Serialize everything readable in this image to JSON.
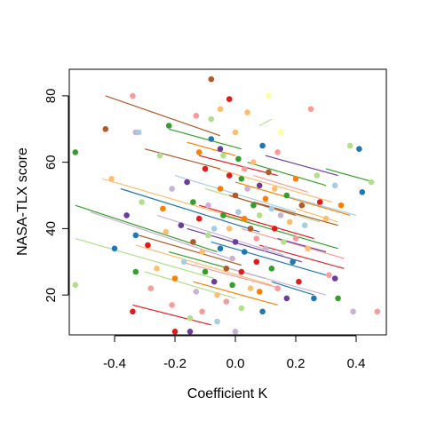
{
  "chart_data": {
    "type": "scatter",
    "title": "",
    "xlabel": "Coefficient K",
    "ylabel": "NASA-TLX score",
    "xlim": [
      -0.55,
      0.5
    ],
    "ylim": [
      8,
      88
    ],
    "xticks": [
      -0.4,
      -0.2,
      0.0,
      0.2,
      0.4
    ],
    "xtick_labels": [
      "-0.4",
      "-0.2",
      "0.0",
      "0.2",
      "0.4"
    ],
    "yticks": [
      20,
      40,
      60,
      80
    ],
    "ytick_labels": [
      "20",
      "40",
      "60",
      "80"
    ],
    "grid": false,
    "legend": "none",
    "palette": [
      "#a6cee3",
      "#1f78b4",
      "#b2df8a",
      "#33a02c",
      "#fb9a99",
      "#e31a1c",
      "#fdbf6f",
      "#ff7f00",
      "#cab2d6",
      "#6a3d9a",
      "#ffff99",
      "#b15928"
    ],
    "lines": [
      {
        "x1": -0.43,
        "y1": 80,
        "x2": -0.05,
        "y2": 68,
        "color": "#b15928"
      },
      {
        "x1": -0.53,
        "y1": 47,
        "x2": -0.06,
        "y2": 33,
        "color": "#33a02c"
      },
      {
        "x1": -0.53,
        "y1": 37,
        "x2": -0.07,
        "y2": 25,
        "color": "#b2df8a"
      },
      {
        "x1": -0.48,
        "y1": 45,
        "x2": -0.02,
        "y2": 31,
        "color": "#cab2d6"
      },
      {
        "x1": -0.44,
        "y1": 55,
        "x2": 0.05,
        "y2": 42,
        "color": "#fdbf6f"
      },
      {
        "x1": -0.38,
        "y1": 52,
        "x2": 0.08,
        "y2": 39,
        "color": "#1f78b4"
      },
      {
        "x1": -0.33,
        "y1": 35,
        "x2": 0.12,
        "y2": 23,
        "color": "#fdbf6f"
      },
      {
        "x1": -0.32,
        "y1": 38,
        "x2": 0.02,
        "y2": 29,
        "color": "#b15928"
      },
      {
        "x1": -0.26,
        "y1": 44,
        "x2": 0.16,
        "y2": 32,
        "color": "#cab2d6"
      },
      {
        "x1": -0.22,
        "y1": 33,
        "x2": 0.1,
        "y2": 25,
        "color": "#33a02c"
      },
      {
        "x1": -0.2,
        "y1": 56,
        "x2": 0.2,
        "y2": 45,
        "color": "#a6cee3"
      },
      {
        "x1": -0.18,
        "y1": 30,
        "x2": 0.15,
        "y2": 22,
        "color": "#fb9a99"
      },
      {
        "x1": -0.16,
        "y1": 40,
        "x2": 0.22,
        "y2": 30,
        "color": "#6a3d9a"
      },
      {
        "x1": -0.14,
        "y1": 24,
        "x2": 0.14,
        "y2": 17,
        "color": "#ff7f00"
      },
      {
        "x1": -0.12,
        "y1": 47,
        "x2": 0.26,
        "y2": 37,
        "color": "#e31a1c"
      },
      {
        "x1": -0.1,
        "y1": 52,
        "x2": 0.28,
        "y2": 42,
        "color": "#b2df8a"
      },
      {
        "x1": -0.08,
        "y1": 36,
        "x2": 0.3,
        "y2": 26,
        "color": "#1f78b4"
      },
      {
        "x1": -0.06,
        "y1": 58,
        "x2": 0.32,
        "y2": 48,
        "color": "#fdbf6f"
      },
      {
        "x1": -0.04,
        "y1": 44,
        "x2": 0.34,
        "y2": 34,
        "color": "#33a02c"
      },
      {
        "x1": -0.02,
        "y1": 28,
        "x2": 0.3,
        "y2": 20,
        "color": "#cab2d6"
      },
      {
        "x1": 0.0,
        "y1": 54,
        "x2": 0.38,
        "y2": 44,
        "color": "#ff7f00"
      },
      {
        "x1": 0.02,
        "y1": 40,
        "x2": 0.36,
        "y2": 31,
        "color": "#fb9a99"
      },
      {
        "x1": 0.04,
        "y1": 60,
        "x2": 0.3,
        "y2": 53,
        "color": "#33a02c"
      },
      {
        "x1": 0.06,
        "y1": 48,
        "x2": 0.34,
        "y2": 41,
        "color": "#b15928"
      },
      {
        "x1": 0.08,
        "y1": 35,
        "x2": 0.36,
        "y2": 28,
        "color": "#e31a1c"
      },
      {
        "x1": 0.1,
        "y1": 62,
        "x2": 0.34,
        "y2": 56,
        "color": "#6a3d9a"
      },
      {
        "x1": -0.3,
        "y1": 64,
        "x2": -0.05,
        "y2": 58,
        "color": "#b15928"
      },
      {
        "x1": -0.22,
        "y1": 70,
        "x2": 0.02,
        "y2": 64,
        "color": "#33a02c"
      },
      {
        "x1": -0.12,
        "y1": 62,
        "x2": 0.14,
        "y2": 56,
        "color": "#e31a1c"
      },
      {
        "x1": 0.08,
        "y1": 71,
        "x2": 0.12,
        "y2": 73,
        "color": "#b2df8a"
      },
      {
        "x1": 0.16,
        "y1": 50,
        "x2": 0.4,
        "y2": 44,
        "color": "#a6cee3"
      },
      {
        "x1": 0.3,
        "y1": 58,
        "x2": 0.46,
        "y2": 54,
        "color": "#33a02c"
      },
      {
        "x1": 0.2,
        "y1": 46,
        "x2": 0.34,
        "y2": 42,
        "color": "#fdbf6f"
      },
      {
        "x1": -0.3,
        "y1": 27,
        "x2": 0.0,
        "y2": 19,
        "color": "#b2df8a"
      },
      {
        "x1": -0.34,
        "y1": 17,
        "x2": -0.08,
        "y2": 11,
        "color": "#e31a1c"
      },
      {
        "x1": 0.14,
        "y1": 37,
        "x2": 0.3,
        "y2": 33,
        "color": "#6a3d9a"
      },
      {
        "x1": 0.12,
        "y1": 24,
        "x2": 0.26,
        "y2": 20,
        "color": "#1f78b4"
      },
      {
        "x1": -0.02,
        "y1": 50,
        "x2": 0.2,
        "y2": 44,
        "color": "#b15928"
      },
      {
        "x1": 0.06,
        "y1": 56,
        "x2": 0.24,
        "y2": 51,
        "color": "#fb9a99"
      },
      {
        "x1": -0.16,
        "y1": 66,
        "x2": 0.0,
        "y2": 62,
        "color": "#ff7f00"
      }
    ],
    "points": [
      {
        "x": -0.53,
        "y": 63,
        "color": "#33a02c"
      },
      {
        "x": -0.53,
        "y": 23,
        "color": "#b2df8a"
      },
      {
        "x": -0.43,
        "y": 70,
        "color": "#b15928"
      },
      {
        "x": -0.41,
        "y": 55,
        "color": "#fdbf6f"
      },
      {
        "x": -0.4,
        "y": 34,
        "color": "#1f78b4"
      },
      {
        "x": -0.36,
        "y": 44,
        "color": "#6a3d9a"
      },
      {
        "x": -0.34,
        "y": 80,
        "color": "#fb9a99"
      },
      {
        "x": -0.33,
        "y": 69,
        "color": "#cab2d6"
      },
      {
        "x": -0.32,
        "y": 69,
        "color": "#a6cee3"
      },
      {
        "x": -0.33,
        "y": 38,
        "color": "#1f78b4"
      },
      {
        "x": -0.33,
        "y": 27,
        "color": "#33a02c"
      },
      {
        "x": -0.34,
        "y": 15,
        "color": "#e31a1c"
      },
      {
        "x": -0.31,
        "y": 48,
        "color": "#b2df8a"
      },
      {
        "x": -0.29,
        "y": 35,
        "color": "#e31a1c"
      },
      {
        "x": -0.28,
        "y": 22,
        "color": "#fb9a99"
      },
      {
        "x": -0.26,
        "y": 28,
        "color": "#fdbf6f"
      },
      {
        "x": -0.25,
        "y": 62,
        "color": "#b2df8a"
      },
      {
        "x": -0.24,
        "y": 46,
        "color": "#ff7f00"
      },
      {
        "x": -0.23,
        "y": 39,
        "color": "#fdbf6f"
      },
      {
        "x": -0.22,
        "y": 71,
        "color": "#33a02c"
      },
      {
        "x": -0.21,
        "y": 52,
        "color": "#cab2d6"
      },
      {
        "x": -0.21,
        "y": 17,
        "color": "#fb9a99"
      },
      {
        "x": -0.2,
        "y": 25,
        "color": "#ff7f00"
      },
      {
        "x": -0.2,
        "y": 9,
        "color": "#e31a1c"
      },
      {
        "x": -0.18,
        "y": 41,
        "color": "#6a3d9a"
      },
      {
        "x": -0.17,
        "y": 30,
        "color": "#a6cee3"
      },
      {
        "x": -0.16,
        "y": 54,
        "color": "#6a3d9a"
      },
      {
        "x": -0.15,
        "y": 13,
        "color": "#b2df8a"
      },
      {
        "x": -0.15,
        "y": 9,
        "color": "#6a3d9a"
      },
      {
        "x": -0.14,
        "y": 48,
        "color": "#33a02c"
      },
      {
        "x": -0.14,
        "y": 36,
        "color": "#b15928"
      },
      {
        "x": -0.13,
        "y": 21,
        "color": "#cab2d6"
      },
      {
        "x": -0.12,
        "y": 63,
        "color": "#ff7f00"
      },
      {
        "x": -0.12,
        "y": 43,
        "color": "#e31a1c"
      },
      {
        "x": -0.11,
        "y": 33,
        "color": "#fdbf6f"
      },
      {
        "x": -0.11,
        "y": 15,
        "color": "#fb9a99"
      },
      {
        "x": -0.1,
        "y": 58,
        "color": "#e31a1c"
      },
      {
        "x": -0.1,
        "y": 27,
        "color": "#33a02c"
      },
      {
        "x": -0.09,
        "y": 47,
        "color": "#cab2d6"
      },
      {
        "x": -0.09,
        "y": 38,
        "color": "#b2df8a"
      },
      {
        "x": -0.08,
        "y": 85,
        "color": "#b15928"
      },
      {
        "x": -0.08,
        "y": 73,
        "color": "#b2df8a"
      },
      {
        "x": -0.08,
        "y": 67,
        "color": "#1f78b4"
      },
      {
        "x": -0.07,
        "y": 40,
        "color": "#a6cee3"
      },
      {
        "x": -0.07,
        "y": 24,
        "color": "#6a3d9a"
      },
      {
        "x": -0.06,
        "y": 20,
        "color": "#fdbf6f"
      },
      {
        "x": -0.06,
        "y": 12,
        "color": "#a6cee3"
      },
      {
        "x": -0.05,
        "y": 76,
        "color": "#fdbf6f"
      },
      {
        "x": -0.05,
        "y": 52,
        "color": "#ff7f00"
      },
      {
        "x": -0.05,
        "y": 34,
        "color": "#1f78b4"
      },
      {
        "x": -0.04,
        "y": 62,
        "color": "#b2df8a"
      },
      {
        "x": -0.04,
        "y": 44,
        "color": "#33a02c"
      },
      {
        "x": -0.03,
        "y": 28,
        "color": "#b15928"
      },
      {
        "x": -0.03,
        "y": 18,
        "color": "#fb9a99"
      },
      {
        "x": -0.02,
        "y": 56,
        "color": "#e31a1c"
      },
      {
        "x": -0.02,
        "y": 40,
        "color": "#fdbf6f"
      },
      {
        "x": -0.01,
        "y": 31,
        "color": "#cab2d6"
      },
      {
        "x": -0.01,
        "y": 23,
        "color": "#33a02c"
      },
      {
        "x": 0.0,
        "y": 69,
        "color": "#fdbf6f"
      },
      {
        "x": 0.0,
        "y": 50,
        "color": "#b15928"
      },
      {
        "x": 0.0,
        "y": 36,
        "color": "#6a3d9a"
      },
      {
        "x": 0.0,
        "y": 9,
        "color": "#cab2d6"
      },
      {
        "x": 0.01,
        "y": 61,
        "color": "#33a02c"
      },
      {
        "x": 0.01,
        "y": 45,
        "color": "#a6cee3"
      },
      {
        "x": 0.02,
        "y": 27,
        "color": "#e31a1c"
      },
      {
        "x": 0.02,
        "y": 16,
        "color": "#b2df8a"
      },
      {
        "x": 0.03,
        "y": 58,
        "color": "#fb9a99"
      },
      {
        "x": 0.03,
        "y": 43,
        "color": "#ff7f00"
      },
      {
        "x": 0.03,
        "y": 33,
        "color": "#1f78b4"
      },
      {
        "x": 0.04,
        "y": 52,
        "color": "#cab2d6"
      },
      {
        "x": 0.05,
        "y": 40,
        "color": "#b15928"
      },
      {
        "x": 0.05,
        "y": 22,
        "color": "#fdbf6f"
      },
      {
        "x": 0.06,
        "y": 60,
        "color": "#fdbf6f"
      },
      {
        "x": 0.06,
        "y": 47,
        "color": "#33a02c"
      },
      {
        "x": 0.07,
        "y": 37,
        "color": "#fb9a99"
      },
      {
        "x": 0.07,
        "y": 30,
        "color": "#e31a1c"
      },
      {
        "x": 0.08,
        "y": 53,
        "color": "#6a3d9a"
      },
      {
        "x": 0.08,
        "y": 44,
        "color": "#b2df8a"
      },
      {
        "x": 0.09,
        "y": 65,
        "color": "#1f78b4"
      },
      {
        "x": 0.09,
        "y": 15,
        "color": "#1f78b4"
      },
      {
        "x": 0.1,
        "y": 49,
        "color": "#ff7f00"
      },
      {
        "x": 0.1,
        "y": 34,
        "color": "#cab2d6"
      },
      {
        "x": 0.11,
        "y": 80,
        "color": "#ffff99"
      },
      {
        "x": 0.11,
        "y": 57,
        "color": "#b15928"
      },
      {
        "x": 0.12,
        "y": 46,
        "color": "#a6cee3"
      },
      {
        "x": 0.12,
        "y": 28,
        "color": "#33a02c"
      },
      {
        "x": 0.13,
        "y": 52,
        "color": "#fdbf6f"
      },
      {
        "x": 0.13,
        "y": 40,
        "color": "#e31a1c"
      },
      {
        "x": 0.14,
        "y": 63,
        "color": "#fb9a99"
      },
      {
        "x": 0.14,
        "y": 22,
        "color": "#fb9a99"
      },
      {
        "x": 0.15,
        "y": 69,
        "color": "#ffff99"
      },
      {
        "x": 0.15,
        "y": 44,
        "color": "#cab2d6"
      },
      {
        "x": 0.16,
        "y": 36,
        "color": "#b2df8a"
      },
      {
        "x": 0.17,
        "y": 50,
        "color": "#33a02c"
      },
      {
        "x": 0.17,
        "y": 19,
        "color": "#6a3d9a"
      },
      {
        "x": 0.18,
        "y": 42,
        "color": "#fdbf6f"
      },
      {
        "x": 0.19,
        "y": 30,
        "color": "#1f78b4"
      },
      {
        "x": 0.2,
        "y": 55,
        "color": "#ff7f00"
      },
      {
        "x": 0.2,
        "y": 37,
        "color": "#fb9a99"
      },
      {
        "x": 0.21,
        "y": 24,
        "color": "#e31a1c"
      },
      {
        "x": 0.22,
        "y": 47,
        "color": "#b15928"
      },
      {
        "x": 0.23,
        "y": 41,
        "color": "#a6cee3"
      },
      {
        "x": 0.24,
        "y": 34,
        "color": "#fdbf6f"
      },
      {
        "x": 0.25,
        "y": 76,
        "color": "#fb9a99"
      },
      {
        "x": 0.26,
        "y": 19,
        "color": "#1f78b4"
      },
      {
        "x": 0.27,
        "y": 56,
        "color": "#b2df8a"
      },
      {
        "x": 0.28,
        "y": 48,
        "color": "#e31a1c"
      },
      {
        "x": 0.3,
        "y": 43,
        "color": "#fdbf6f"
      },
      {
        "x": 0.31,
        "y": 26,
        "color": "#fb9a99"
      },
      {
        "x": 0.33,
        "y": 53,
        "color": "#a6cee3"
      },
      {
        "x": 0.33,
        "y": 25,
        "color": "#6a3d9a"
      },
      {
        "x": 0.34,
        "y": 19,
        "color": "#33a02c"
      },
      {
        "x": 0.35,
        "y": 47,
        "color": "#ff7f00"
      },
      {
        "x": 0.38,
        "y": 65,
        "color": "#b2df8a"
      },
      {
        "x": 0.39,
        "y": 15,
        "color": "#cab2d6"
      },
      {
        "x": 0.41,
        "y": 64,
        "color": "#1f78b4"
      },
      {
        "x": 0.42,
        "y": 51,
        "color": "#1f78b4"
      },
      {
        "x": 0.45,
        "y": 54,
        "color": "#b2df8a"
      },
      {
        "x": 0.47,
        "y": 15,
        "color": "#fb9a99"
      },
      {
        "x": -0.05,
        "y": 64,
        "color": "#6a3d9a"
      },
      {
        "x": -0.02,
        "y": 79,
        "color": "#e31a1c"
      },
      {
        "x": 0.04,
        "y": 75,
        "color": "#fdbf6f"
      },
      {
        "x": -0.13,
        "y": 74,
        "color": "#fb9a99"
      },
      {
        "x": 0.08,
        "y": 21,
        "color": "#ff7f00"
      },
      {
        "x": 0.02,
        "y": 55,
        "color": "#33a02c"
      }
    ]
  }
}
